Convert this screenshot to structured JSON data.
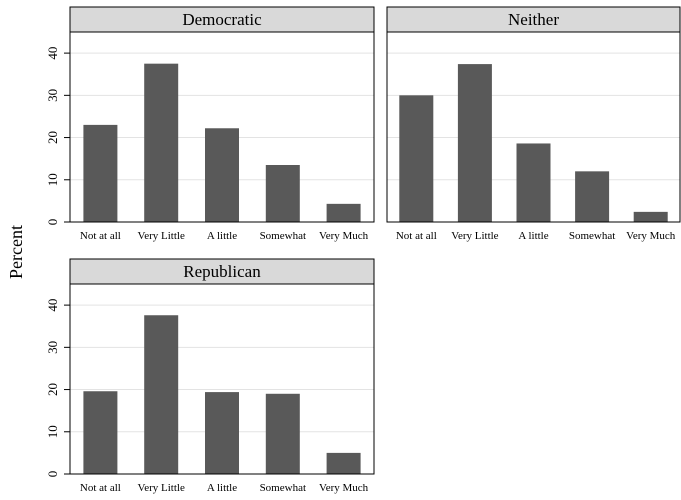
{
  "ylabel": "Percent",
  "chart_data": {
    "type": "bar",
    "ylabel": "Percent",
    "xlabel": "",
    "ylim": [
      0,
      45
    ],
    "yticks": [
      0,
      10,
      20,
      30,
      40
    ],
    "grid": true,
    "bar_color": "#595959",
    "categories": [
      "Not at all",
      "Very Little",
      "A little",
      "Somewhat",
      "Very Much"
    ],
    "panels": [
      {
        "title": "Democratic",
        "values": [
          23.0,
          37.5,
          22.2,
          13.5,
          4.3
        ]
      },
      {
        "title": "Neither",
        "values": [
          30.0,
          37.4,
          18.6,
          12.0,
          2.4
        ]
      },
      {
        "title": "Republican",
        "values": [
          19.6,
          37.6,
          19.4,
          19.0,
          5.0
        ]
      }
    ]
  }
}
